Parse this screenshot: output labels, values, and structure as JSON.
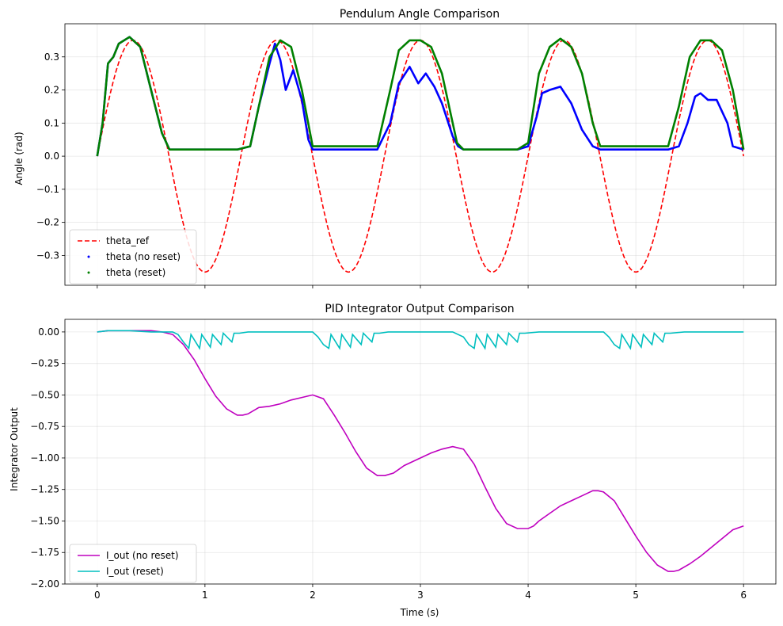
{
  "chart_data": [
    {
      "type": "line",
      "title": "Pendulum Angle Comparison",
      "xlabel": "",
      "ylabel": "Angle (rad)",
      "xlim": [
        -0.3,
        6.3
      ],
      "ylim": [
        -0.39,
        0.4
      ],
      "xticks": [
        0,
        1,
        2,
        3,
        4,
        5,
        6
      ],
      "xtick_labels_visible": false,
      "yticks": [
        -0.3,
        -0.2,
        -0.1,
        0.0,
        0.1,
        0.2,
        0.3
      ],
      "ytick_labels": [
        "−0.3",
        "−0.2",
        "−0.1",
        "0.0",
        "0.1",
        "0.2",
        "0.3"
      ],
      "grid": true,
      "legend_position": "lower-left",
      "series": [
        {
          "name": "theta_ref",
          "style": "dashed-line",
          "color": "#ff0000",
          "function": "0.35*sin(2*pi*t/1.333...); positive lobes have an early ripple near 0.28",
          "x": [
            0.0,
            0.1,
            0.167,
            0.333,
            0.5,
            0.667,
            0.833,
            1.0,
            1.167,
            1.333,
            1.5,
            1.667,
            1.833,
            2.0,
            2.167,
            2.333,
            2.5,
            2.667,
            2.833,
            3.0,
            3.167,
            3.333,
            3.5,
            3.667,
            3.833,
            4.0,
            4.167,
            4.333,
            4.5,
            4.667,
            4.833,
            5.0,
            5.167,
            5.333,
            5.5,
            5.667,
            5.833,
            6.0
          ],
          "y": [
            0.0,
            0.16,
            0.25,
            0.35,
            0.25,
            0.0,
            -0.25,
            -0.35,
            -0.25,
            0.0,
            0.25,
            0.35,
            0.25,
            0.0,
            -0.25,
            -0.35,
            -0.25,
            0.0,
            0.25,
            0.35,
            0.25,
            0.0,
            -0.25,
            -0.35,
            -0.25,
            0.0,
            0.25,
            0.35,
            0.25,
            0.0,
            -0.25,
            -0.35,
            -0.25,
            0.0,
            0.25,
            0.35,
            0.25,
            0.0
          ]
        },
        {
          "name": "theta (no reset)",
          "style": "dots",
          "color": "#0000ff",
          "x": [
            0.0,
            0.05,
            0.1,
            0.15,
            0.2,
            0.3,
            0.4,
            0.5,
            0.6,
            0.67,
            1.0,
            1.3,
            1.42,
            1.5,
            1.6,
            1.65,
            1.7,
            1.75,
            1.82,
            1.9,
            1.96,
            2.0,
            2.6,
            2.72,
            2.8,
            2.9,
            2.98,
            3.05,
            3.13,
            3.2,
            3.3,
            3.35,
            3.4,
            3.9,
            4.0,
            4.08,
            4.13,
            4.2,
            4.3,
            4.4,
            4.5,
            4.6,
            4.67,
            5.3,
            5.4,
            5.48,
            5.55,
            5.6,
            5.67,
            5.75,
            5.85,
            5.9,
            6.0
          ],
          "y": [
            0.0,
            0.1,
            0.28,
            0.3,
            0.34,
            0.36,
            0.33,
            0.2,
            0.07,
            0.02,
            0.02,
            0.02,
            0.03,
            0.15,
            0.28,
            0.34,
            0.29,
            0.2,
            0.26,
            0.17,
            0.05,
            0.02,
            0.02,
            0.1,
            0.22,
            0.27,
            0.22,
            0.25,
            0.21,
            0.16,
            0.06,
            0.03,
            0.02,
            0.02,
            0.03,
            0.12,
            0.19,
            0.2,
            0.21,
            0.16,
            0.08,
            0.03,
            0.02,
            0.02,
            0.03,
            0.1,
            0.18,
            0.19,
            0.17,
            0.17,
            0.1,
            0.03,
            0.02
          ]
        },
        {
          "name": "theta (reset)",
          "style": "dots",
          "color": "#008000",
          "x": [
            0.0,
            0.05,
            0.1,
            0.15,
            0.2,
            0.3,
            0.4,
            0.5,
            0.6,
            0.67,
            1.0,
            1.3,
            1.42,
            1.5,
            1.6,
            1.7,
            1.8,
            1.9,
            2.0,
            2.6,
            2.72,
            2.8,
            2.9,
            3.0,
            3.1,
            3.2,
            3.3,
            3.34,
            3.4,
            3.9,
            4.0,
            4.1,
            4.2,
            4.3,
            4.4,
            4.5,
            4.6,
            4.67,
            5.3,
            5.4,
            5.5,
            5.6,
            5.7,
            5.8,
            5.9,
            6.0
          ],
          "y": [
            0.0,
            0.1,
            0.28,
            0.3,
            0.34,
            0.36,
            0.33,
            0.2,
            0.07,
            0.02,
            0.02,
            0.02,
            0.03,
            0.15,
            0.3,
            0.35,
            0.33,
            0.2,
            0.03,
            0.03,
            0.2,
            0.32,
            0.35,
            0.35,
            0.33,
            0.25,
            0.1,
            0.04,
            0.02,
            0.02,
            0.04,
            0.25,
            0.33,
            0.355,
            0.33,
            0.25,
            0.1,
            0.03,
            0.03,
            0.15,
            0.3,
            0.35,
            0.35,
            0.32,
            0.2,
            0.02
          ]
        }
      ]
    },
    {
      "type": "line",
      "title": "PID Integrator Output Comparison",
      "xlabel": "Time (s)",
      "ylabel": "Integrator Output",
      "xlim": [
        -0.3,
        6.3
      ],
      "ylim": [
        -2.0,
        0.1
      ],
      "xticks": [
        0,
        1,
        2,
        3,
        4,
        5,
        6
      ],
      "xtick_labels": [
        "0",
        "1",
        "2",
        "3",
        "4",
        "5",
        "6"
      ],
      "yticks": [
        -2.0,
        -1.75,
        -1.5,
        -1.25,
        -1.0,
        -0.75,
        -0.5,
        -0.25,
        0.0
      ],
      "ytick_labels": [
        "−2.00",
        "−1.75",
        "−1.50",
        "−1.25",
        "−1.00",
        "−0.75",
        "−0.50",
        "−0.25",
        "0.00"
      ],
      "grid": true,
      "legend_position": "lower-left",
      "series": [
        {
          "name": "I_out (no reset)",
          "style": "line",
          "color": "#bf00bf",
          "x": [
            0.0,
            0.1,
            0.2,
            0.3,
            0.4,
            0.5,
            0.6,
            0.7,
            0.8,
            0.9,
            1.0,
            1.1,
            1.2,
            1.3,
            1.35,
            1.4,
            1.5,
            1.6,
            1.7,
            1.8,
            1.9,
            2.0,
            2.1,
            2.2,
            2.3,
            2.4,
            2.5,
            2.6,
            2.67,
            2.75,
            2.85,
            2.95,
            3.1,
            3.2,
            3.3,
            3.4,
            3.5,
            3.6,
            3.7,
            3.8,
            3.9,
            4.0,
            4.05,
            4.1,
            4.2,
            4.3,
            4.4,
            4.5,
            4.6,
            4.65,
            4.7,
            4.8,
            4.9,
            5.0,
            5.1,
            5.2,
            5.3,
            5.35,
            5.4,
            5.5,
            5.6,
            5.7,
            5.8,
            5.9,
            6.0
          ],
          "y": [
            0.0,
            0.01,
            0.01,
            0.01,
            0.01,
            0.01,
            0.0,
            -0.02,
            -0.1,
            -0.22,
            -0.37,
            -0.51,
            -0.61,
            -0.66,
            -0.66,
            -0.65,
            -0.6,
            -0.59,
            -0.57,
            -0.54,
            -0.52,
            -0.5,
            -0.53,
            -0.66,
            -0.8,
            -0.95,
            -1.08,
            -1.14,
            -1.14,
            -1.12,
            -1.06,
            -1.02,
            -0.96,
            -0.93,
            -0.91,
            -0.93,
            -1.05,
            -1.23,
            -1.4,
            -1.52,
            -1.56,
            -1.56,
            -1.54,
            -1.5,
            -1.44,
            -1.38,
            -1.34,
            -1.3,
            -1.26,
            -1.26,
            -1.27,
            -1.34,
            -1.48,
            -1.62,
            -1.75,
            -1.85,
            -1.9,
            -1.9,
            -1.89,
            -1.84,
            -1.78,
            -1.71,
            -1.64,
            -1.57,
            -1.54
          ]
        },
        {
          "name": "I_out (reset)",
          "style": "line",
          "color": "#00bfbf",
          "x": [
            0.0,
            0.1,
            0.2,
            0.3,
            0.5,
            0.7,
            0.75,
            0.8,
            0.85,
            0.87,
            0.95,
            0.97,
            1.05,
            1.07,
            1.15,
            1.17,
            1.25,
            1.27,
            1.32,
            1.4,
            1.5,
            2.0,
            2.05,
            2.1,
            2.15,
            2.17,
            2.25,
            2.27,
            2.35,
            2.37,
            2.45,
            2.47,
            2.55,
            2.57,
            2.62,
            2.7,
            2.8,
            3.3,
            3.4,
            3.45,
            3.5,
            3.52,
            3.6,
            3.62,
            3.7,
            3.72,
            3.8,
            3.82,
            3.9,
            3.92,
            3.97,
            4.1,
            4.2,
            4.7,
            4.75,
            4.8,
            4.85,
            4.87,
            4.95,
            4.97,
            5.05,
            5.07,
            5.15,
            5.17,
            5.25,
            5.27,
            5.32,
            5.45,
            5.6,
            6.0
          ],
          "y": [
            0.0,
            0.01,
            0.01,
            0.01,
            0.0,
            0.0,
            -0.02,
            -0.08,
            -0.13,
            -0.02,
            -0.13,
            -0.02,
            -0.12,
            -0.02,
            -0.1,
            -0.01,
            -0.08,
            -0.01,
            -0.01,
            0.0,
            0.0,
            0.0,
            -0.04,
            -0.1,
            -0.13,
            -0.02,
            -0.13,
            -0.02,
            -0.12,
            -0.02,
            -0.1,
            -0.01,
            -0.08,
            -0.01,
            -0.01,
            0.0,
            0.0,
            0.0,
            -0.04,
            -0.1,
            -0.13,
            -0.02,
            -0.13,
            -0.02,
            -0.12,
            -0.02,
            -0.1,
            -0.01,
            -0.08,
            -0.01,
            -0.01,
            0.0,
            0.0,
            0.0,
            -0.04,
            -0.1,
            -0.13,
            -0.02,
            -0.13,
            -0.02,
            -0.12,
            -0.02,
            -0.1,
            -0.01,
            -0.08,
            -0.01,
            -0.01,
            0.0,
            0.0,
            0.0
          ]
        }
      ]
    }
  ]
}
